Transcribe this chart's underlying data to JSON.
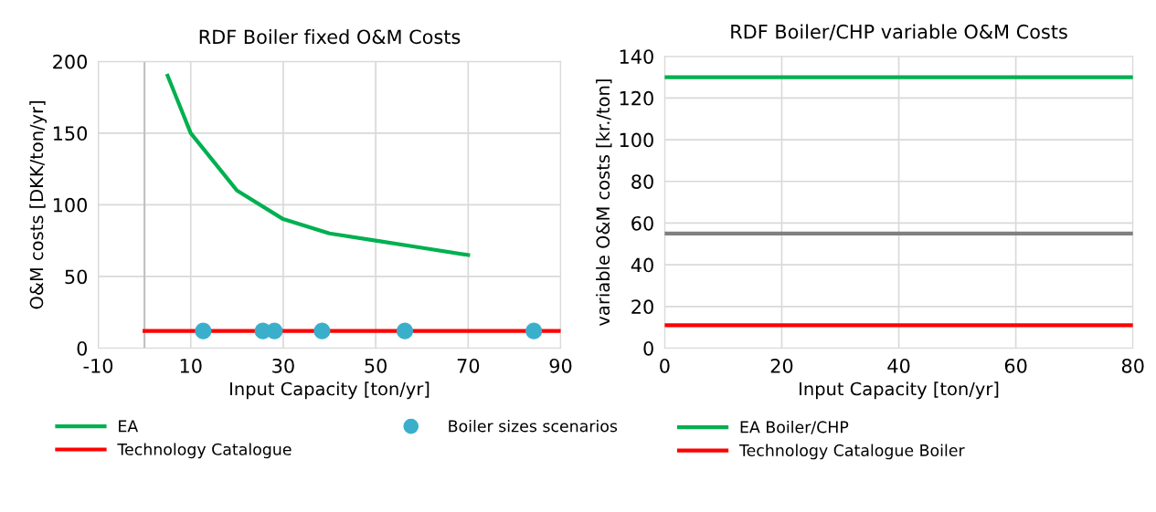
{
  "chart_data": [
    {
      "type": "line",
      "title": "RDF Boiler fixed O&M Costs",
      "xlabel": "Input Capacity [ton/yr]",
      "ylabel": "O&M costs [DKK/ton/yr]",
      "xlim": [
        -10,
        90
      ],
      "xticks": [
        -10,
        10,
        30,
        50,
        70,
        90
      ],
      "ylim": [
        0,
        200
      ],
      "yticks": [
        0,
        50,
        100,
        150,
        200
      ],
      "grid": true,
      "legend": "bottom",
      "ref_lines": [
        {
          "axis": "x",
          "value": 0,
          "label": null,
          "color": "#bfbfbf"
        }
      ],
      "series": [
        {
          "name": "EA",
          "color": "#00b050",
          "x": [
            5,
            10,
            20,
            30,
            40,
            50,
            60,
            70
          ],
          "values": [
            190,
            150,
            110,
            90,
            80,
            75,
            70,
            65
          ]
        },
        {
          "name": "Technology Catalogue",
          "color": "#ff0000",
          "x": [
            0,
            90
          ],
          "values": [
            12,
            12
          ]
        },
        {
          "name": "Boiler sizes scenarios",
          "type": "scatter",
          "marker": "circle",
          "color": "#3aafcc",
          "x": [
            12.7,
            25.6,
            28.1,
            38.4,
            56.3,
            84.2
          ],
          "values": [
            12,
            12,
            12,
            12,
            12,
            12
          ]
        }
      ]
    },
    {
      "type": "line",
      "title": "RDF Boiler/CHP variable O&M Costs",
      "xlabel": "Input Capacity [ton/yr]",
      "ylabel": "variable O&M costs [kr./ton]",
      "xlim": [
        0,
        80
      ],
      "xticks": [
        0,
        20,
        40,
        60,
        80
      ],
      "ylim": [
        0,
        140
      ],
      "yticks": [
        0,
        20,
        40,
        60,
        80,
        100,
        120,
        140
      ],
      "grid": true,
      "legend": "bottom",
      "series": [
        {
          "name": "EA Boiler/CHP",
          "color": "#00b050",
          "x": [
            0,
            80
          ],
          "values": [
            130,
            130
          ]
        },
        {
          "name": "Technology Catalogue Boiler",
          "color": "#ff0000",
          "x": [
            0,
            80
          ],
          "values": [
            11,
            11
          ]
        },
        {
          "color": "#808080",
          "x": [
            0,
            80
          ],
          "values": [
            55,
            55
          ]
        }
      ]
    }
  ]
}
